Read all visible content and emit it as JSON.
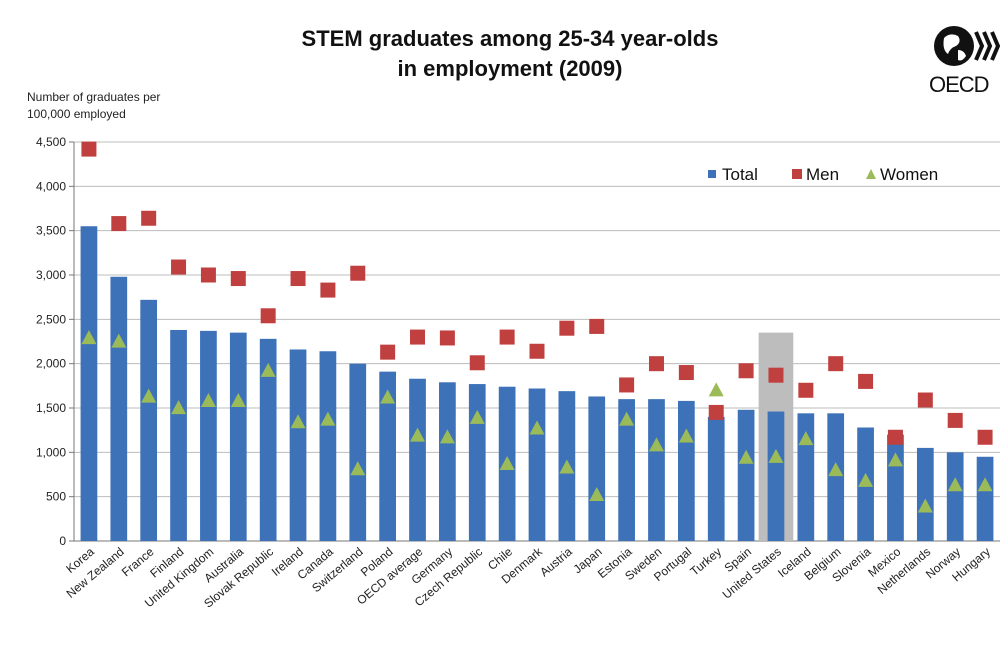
{
  "chart_data": {
    "type": "bar",
    "title_lines": [
      "STEM graduates among 25-34 year-olds",
      "in employment (2009)"
    ],
    "ylabel_lines": [
      "Number of graduates per",
      "100,000 employed"
    ],
    "logo_text": "OECD",
    "ylim": [
      0,
      4500
    ],
    "yticks": [
      0,
      500,
      1000,
      1500,
      2000,
      2500,
      3000,
      3500,
      4000,
      4500
    ],
    "ytick_labels": [
      "0",
      "500",
      "1,000",
      "1,500",
      "2,000",
      "2,500",
      "3,000",
      "3,500",
      "4,000",
      "4,500"
    ],
    "grid": true,
    "legend_position": "top-right",
    "highlighted_category": "United States",
    "categories": [
      "Korea",
      "New Zealand",
      "France",
      "Finland",
      "United Kingdom",
      "Australia",
      "Slovak Republic",
      "Ireland",
      "Canada",
      "Switzerland",
      "Poland",
      "OECD average",
      "Germany",
      "Czech Republic",
      "Chile",
      "Denmark",
      "Austria",
      "Japan",
      "Estonia",
      "Sweden",
      "Portugal",
      "Turkey",
      "Spain",
      "United States",
      "Iceland",
      "Belgium",
      "Slovenia",
      "Mexico",
      "Netherlands",
      "Norway",
      "Hungary"
    ],
    "series": [
      {
        "name": "Total",
        "kind": "bar",
        "color": "#3d72b8",
        "values": [
          3550,
          2980,
          2720,
          2380,
          2370,
          2350,
          2280,
          2160,
          2140,
          2000,
          1910,
          1830,
          1790,
          1770,
          1740,
          1720,
          1690,
          1630,
          1600,
          1600,
          1580,
          1400,
          1480,
          1460,
          1440,
          1440,
          1280,
          1200,
          1050,
          1000,
          950
        ]
      },
      {
        "name": "Men",
        "kind": "square",
        "color": "#c0403f",
        "values": [
          4420,
          3580,
          3640,
          3090,
          3000,
          2960,
          2540,
          2960,
          2830,
          3020,
          2130,
          2300,
          2290,
          2010,
          2300,
          2140,
          2400,
          2420,
          1760,
          2000,
          1900,
          1450,
          1920,
          1870,
          1700,
          2000,
          1800,
          1170,
          1590,
          1360,
          1170
        ]
      },
      {
        "name": "Women",
        "kind": "triangle",
        "color": "#9bbb59",
        "values": [
          2300,
          2260,
          1640,
          1510,
          1590,
          1590,
          1930,
          1350,
          1380,
          820,
          1630,
          1200,
          1180,
          1400,
          880,
          1280,
          840,
          530,
          1380,
          1090,
          1190,
          1710,
          950,
          960,
          1160,
          810,
          690,
          920,
          400,
          640,
          640
        ]
      }
    ]
  }
}
